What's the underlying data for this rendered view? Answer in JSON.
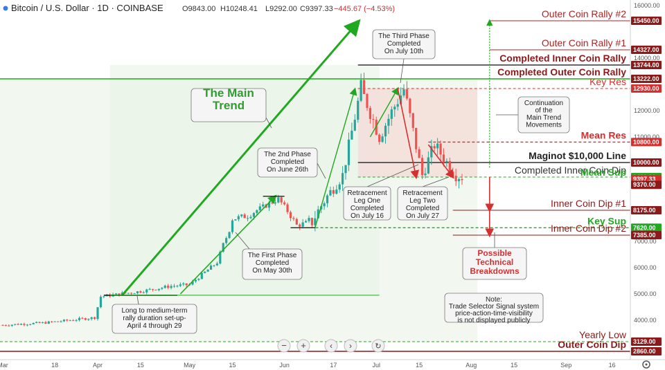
{
  "header": {
    "title": "Bitcoin / U.S. Dollar · 1D · COINBASE",
    "ohlc": [
      "O9843.00",
      "H10248.41",
      "L9292.00",
      "C9397.33"
    ],
    "change": "−445.67 (−4.53%)"
  },
  "colors": {
    "up": "#26a69a",
    "down": "#ef5350",
    "green_line": "#21a821",
    "red_line": "#d62f2f",
    "dark_line": "#333333",
    "bg_green": "#e8f3e4",
    "bg_red": "#f4dcd8"
  },
  "axis": {
    "y_ticks": [
      {
        "label": "4000.00",
        "value": 4000
      },
      {
        "label": "5000.00",
        "value": 5000
      },
      {
        "label": "6000.00",
        "value": 6000
      },
      {
        "label": "7000.00",
        "value": 7000
      },
      {
        "label": "10000.00",
        "value": 10000
      },
      {
        "label": "11000.00",
        "value": 11000
      },
      {
        "label": "12000.00",
        "value": 12000
      },
      {
        "label": "14000.00",
        "value": 14000
      },
      {
        "label": "16000.00",
        "value": 16000
      }
    ],
    "x_ticks": [
      {
        "label": "Mar",
        "day": 1
      },
      {
        "label": "18",
        "day": 18
      },
      {
        "label": "Apr",
        "day": 32
      },
      {
        "label": "15",
        "day": 46
      },
      {
        "label": "May",
        "day": 62
      },
      {
        "label": "15",
        "day": 76
      },
      {
        "label": "Jun",
        "day": 93
      },
      {
        "label": "17",
        "day": 109
      },
      {
        "label": "Jul",
        "day": 123
      },
      {
        "label": "15",
        "day": 137
      },
      {
        "label": "Aug",
        "day": 154
      },
      {
        "label": "15",
        "day": 168
      },
      {
        "label": "Sep",
        "day": 185
      },
      {
        "label": "16",
        "day": 200
      }
    ]
  },
  "levels": [
    {
      "label": "Outer Coin Rally #2",
      "tag": "15450.00",
      "value": 15450,
      "color": "#b22222",
      "style": "solid",
      "bold": false,
      "tagColor": "#8b1a1a",
      "labelColor": "#b22222"
    },
    {
      "label": "Outer Coin Rally #1",
      "tag": "14327.00",
      "value": 14327,
      "color": "#b22222",
      "style": "solid",
      "bold": false,
      "tagColor": "#8b1a1a",
      "labelColor": "#b22222"
    },
    {
      "label": "Completed Inner Coin Rally",
      "tag": "13744.00",
      "value": 13744,
      "color": "#333333",
      "style": "solid",
      "bold": true,
      "tagColor": "#8b1a1a",
      "labelColor": "#8b1a1a"
    },
    {
      "label": "Completed Outer Coin Rally",
      "tag": "13222.00",
      "value": 13222,
      "color": "#21a821",
      "style": "solid",
      "bold": true,
      "tagColor": "#8b1a1a",
      "labelColor": "#8b1a1a"
    },
    {
      "label": "Key Res",
      "tag": "12930.00",
      "value": 12930,
      "color": "#d62f2f",
      "style": "dashed",
      "bold": false,
      "tagColor": "#d62f2f",
      "labelColor": "#d62f2f"
    },
    {
      "label": "Mean Res",
      "tag": "10800.00",
      "value": 10800,
      "color": "#d62f2f",
      "style": "dashed",
      "bold": true,
      "tagColor": "#d62f2f",
      "labelColor": "#d62f2f"
    },
    {
      "label": "Maginot $10,000 Line",
      "tag": "10000.00",
      "value": 10000,
      "color": "#333333",
      "style": "solid",
      "bold": true,
      "tagColor": "#8b1a1a",
      "labelColor": "#222222"
    },
    {
      "label": "Completed Inner Coin Dip",
      "tag": "9422.00",
      "value": 9422,
      "color": "#21a821",
      "style": "dashed",
      "bold": false,
      "tagColor": "#21a821",
      "labelColor": "#333333"
    },
    {
      "label": "Mean Sup",
      "tag": "9397.33",
      "value": 9350,
      "color": "#21a821",
      "style": "none",
      "bold": true,
      "tagColor": "#d62f2f",
      "labelColor": "#21a821"
    },
    {
      "label": "",
      "tag": "9370.00",
      "value": 9130,
      "color": "#8b1a1a",
      "style": "none",
      "bold": false,
      "tagColor": "#8b1a1a",
      "labelColor": "#8b1a1a"
    },
    {
      "label": "Inner Coin Dip #1",
      "tag": "8175.00",
      "value": 8175,
      "color": "#8b1a1a",
      "style": "solid",
      "bold": false,
      "tagColor": "#8b1a1a",
      "labelColor": "#8b1a1a"
    },
    {
      "label": "Key Sup",
      "tag": "7620.00",
      "value": 7620,
      "color": "#21a821",
      "style": "dashed",
      "bold": true,
      "tagColor": "#21a821",
      "labelColor": "#21a821"
    },
    {
      "label": "Inner Coin Dip #2",
      "tag": "7385.00",
      "value": 7385,
      "color": "#8b1a1a",
      "style": "solid",
      "bold": false,
      "tagColor": "#8b1a1a",
      "labelColor": "#8b1a1a"
    },
    {
      "label": "Yearly Low",
      "tag": "3129.00",
      "value": 3129,
      "color": "#21a821",
      "style": "dashed",
      "bold": false,
      "tagColor": "#8b1a1a",
      "labelColor": "#8b1a1a"
    },
    {
      "label": "Outer Coin Dip",
      "tag": "2860.00",
      "value": 2860,
      "color": "#8b1a1a",
      "style": "solid",
      "bold": true,
      "tagColor": "#8b1a1a",
      "labelColor": "#8b1a1a"
    }
  ],
  "callouts": {
    "main_trend": [
      "The Main",
      "Trend"
    ],
    "third_phase": [
      "The Third Phase",
      "Completed",
      "On July 10th"
    ],
    "second_phase": [
      "The 2nd Phase",
      "Completed",
      "On June 26th"
    ],
    "first_phase": [
      "The First Phase",
      "Completed",
      "On May 30th"
    ],
    "continuation": [
      "Continuation",
      "of the",
      "Main Trend",
      "Movements"
    ],
    "leg_one": [
      "Retracement",
      "Leg One",
      "Completed",
      "On July 16"
    ],
    "leg_two": [
      "Retracement",
      "Leg Two",
      "Completed",
      "On July 27"
    ],
    "rally_setup": [
      "Long to medium-term",
      "rally duration set-up-",
      "April 4 through 29"
    ],
    "breakdowns": [
      "Possible",
      "Technical",
      "Breakdowns"
    ],
    "note": [
      "Note:",
      "Trade Selector Signal system",
      "price-action-time-visibility",
      "is not displayed publicly"
    ]
  },
  "chart_data": {
    "type": "candlestick",
    "title": "Bitcoin / U.S. Dollar · 1D · COINBASE",
    "x_unit": "date (2019)",
    "series": [
      {
        "name": "BTC/USD",
        "points": [
          {
            "date": "2019-03-01",
            "close": 3800
          },
          {
            "date": "2019-03-15",
            "close": 3900
          },
          {
            "date": "2019-03-31",
            "close": 4100
          },
          {
            "date": "2019-04-02",
            "close": 4900
          },
          {
            "date": "2019-04-15",
            "close": 5100
          },
          {
            "date": "2019-04-25",
            "close": 5300
          },
          {
            "date": "2019-05-01",
            "close": 5350
          },
          {
            "date": "2019-05-10",
            "close": 6200
          },
          {
            "date": "2019-05-15",
            "close": 7900
          },
          {
            "date": "2019-05-20",
            "close": 8000
          },
          {
            "date": "2019-05-30",
            "close": 8600
          },
          {
            "date": "2019-06-05",
            "close": 7700
          },
          {
            "date": "2019-06-10",
            "close": 7800
          },
          {
            "date": "2019-06-15",
            "close": 8700
          },
          {
            "date": "2019-06-20",
            "close": 9500
          },
          {
            "date": "2019-06-26",
            "close": 12900
          },
          {
            "date": "2019-07-02",
            "close": 11000
          },
          {
            "date": "2019-07-10",
            "close": 12900
          },
          {
            "date": "2019-07-16",
            "close": 9500
          },
          {
            "date": "2019-07-20",
            "close": 10700
          },
          {
            "date": "2019-07-27",
            "close": 9500
          },
          {
            "date": "2019-07-30",
            "close": 9397
          }
        ]
      }
    ],
    "header_ohlc": {
      "open": 9843.0,
      "high": 10248.41,
      "low": 9292.0,
      "close": 9397.33,
      "change": -445.67,
      "change_pct": -4.53
    }
  }
}
